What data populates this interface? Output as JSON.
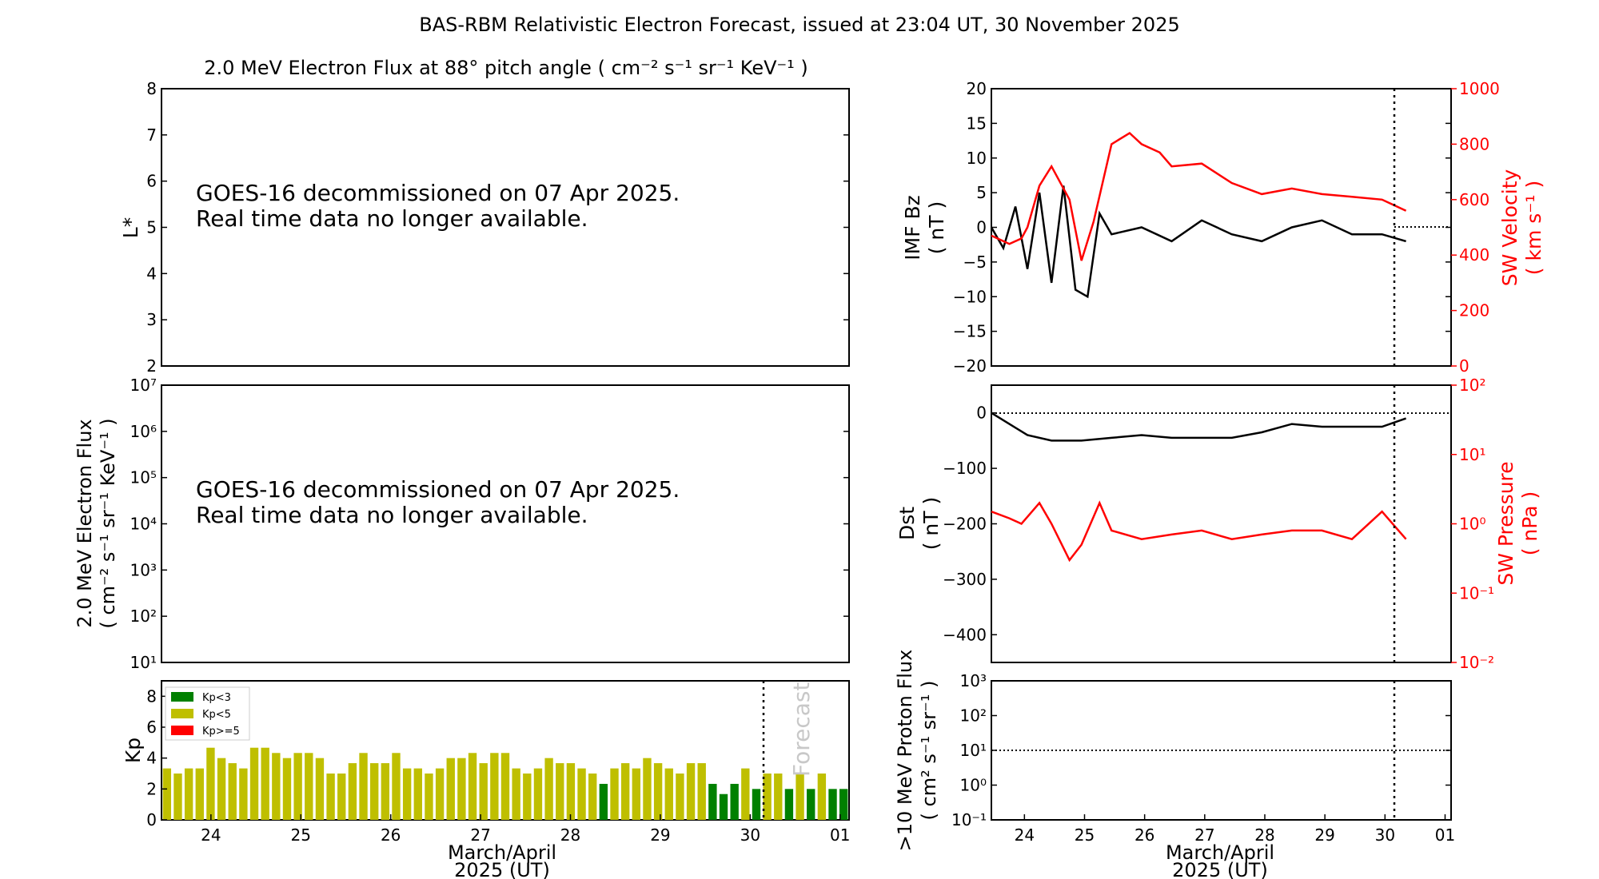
{
  "figure": {
    "title": "BAS-RBM Relativistic Electron Forecast, issued at 23:04 UT, 30 November 2025",
    "notice_line1": "GOES-16 decommissioned on 07 Apr 2025.",
    "notice_line2": "Real time data no longer available.",
    "xlabel_line1": "March/April",
    "xlabel_line2": "2025 (UT)",
    "day_ticks": [
      "24",
      "25",
      "26",
      "27",
      "28",
      "29",
      "30",
      "01"
    ],
    "forecast_label": "Forecast"
  },
  "chart_data": [
    {
      "id": "lstar",
      "type": "line",
      "title": "2.0 MeV Electron Flux at 88° pitch angle ( cm⁻² s⁻¹ sr⁻¹ KeV⁻¹ )",
      "ylabel": "L*",
      "ylim": [
        2,
        8
      ],
      "yticks": [
        "2",
        "3",
        "4",
        "5",
        "6",
        "7",
        "8"
      ],
      "series": []
    },
    {
      "id": "electron_flux",
      "type": "line",
      "ylabel_line1": "2.0 MeV Electron Flux",
      "ylabel_line2": "( cm⁻² s⁻¹ sr⁻¹ KeV⁻¹ )",
      "yscale": "log",
      "ylim": [
        10,
        10000000
      ],
      "yticks": [
        "10¹",
        "10²",
        "10³",
        "10⁴",
        "10⁵",
        "10⁶",
        "10⁷"
      ],
      "series": []
    },
    {
      "id": "kp",
      "type": "bar",
      "ylabel": "Kp",
      "ylim": [
        0,
        9
      ],
      "yticks": [
        "0",
        "2",
        "4",
        "6",
        "8"
      ],
      "legend": [
        "Kp<3",
        "Kp<5",
        "Kp>=5"
      ],
      "colors": {
        "low": "#008000",
        "mid": "#bfbf00",
        "high": "#ff0000"
      },
      "values": [
        3.33,
        3.0,
        3.33,
        3.33,
        4.67,
        4.0,
        3.67,
        3.33,
        4.67,
        4.67,
        4.33,
        4.0,
        4.33,
        4.33,
        4.0,
        3.0,
        3.0,
        3.67,
        4.33,
        3.67,
        3.67,
        4.33,
        3.33,
        3.33,
        3.0,
        3.33,
        4.0,
        4.0,
        4.33,
        3.67,
        4.33,
        4.33,
        3.33,
        3.0,
        3.33,
        4.0,
        3.67,
        3.67,
        3.33,
        3.0,
        2.33,
        3.33,
        3.67,
        3.33,
        4.0,
        3.67,
        3.33,
        3.0,
        3.67,
        3.67,
        2.33,
        1.67,
        2.33,
        3.33,
        2.0,
        3.0,
        3.0,
        2.0,
        3.0,
        2.0,
        3.0,
        2.0,
        2.0
      ],
      "forecast_index": 54,
      "xlabel": "March/April"
    },
    {
      "id": "imf_bz_sw_velocity",
      "type": "line",
      "ylabel_line1": "IMF Bz",
      "ylabel_line2": "( nT )",
      "ylim": [
        -20,
        20
      ],
      "yticks": [
        "−20",
        "−15",
        "−10",
        "−5",
        "0",
        "5",
        "10",
        "15",
        "20"
      ],
      "y2label_line1": "SW Velocity",
      "y2label_line2": "( km s⁻¹ )",
      "y2lim": [
        0,
        1000
      ],
      "y2ticks": [
        "0",
        "200",
        "400",
        "600",
        "800",
        "1000"
      ],
      "series": [
        {
          "axis": "left",
          "color": "#000000",
          "x": [
            0.0,
            0.2,
            0.4,
            0.6,
            0.8,
            1.0,
            1.2,
            1.4,
            1.6,
            1.8,
            2.0,
            2.5,
            3.0,
            3.5,
            4.0,
            4.5,
            5.0,
            5.5,
            6.0,
            6.5,
            6.9
          ],
          "y": [
            0,
            -3,
            3,
            -6,
            5,
            -8,
            6,
            -9,
            -10,
            2,
            -1,
            0,
            -2,
            1,
            -1,
            -2,
            0,
            1,
            -1,
            -1,
            -2
          ]
        },
        {
          "axis": "right",
          "color": "#ff0000",
          "x": [
            0.0,
            0.3,
            0.5,
            0.6,
            0.8,
            1.0,
            1.3,
            1.5,
            1.7,
            2.0,
            2.3,
            2.5,
            2.8,
            3.0,
            3.5,
            4.0,
            4.5,
            5.0,
            5.5,
            6.0,
            6.5,
            6.9
          ],
          "y": [
            470,
            440,
            460,
            500,
            650,
            720,
            600,
            380,
            520,
            800,
            840,
            800,
            770,
            720,
            730,
            660,
            620,
            640,
            620,
            610,
            600,
            560
          ]
        }
      ]
    },
    {
      "id": "dst_sw_pressure",
      "type": "line",
      "ylabel_line1": "Dst",
      "ylabel_line2": "( nT )",
      "ylim": [
        -450,
        50
      ],
      "yticks": [
        "−400",
        "−300",
        "−200",
        "−100",
        "0"
      ],
      "y2label_line1": "SW Pressure",
      "y2label_line2": "( nPa )",
      "y2scale": "log",
      "y2lim": [
        0.01,
        100
      ],
      "y2ticks": [
        "10⁻²",
        "10⁻¹",
        "10⁰",
        "10¹",
        "10²"
      ],
      "series": [
        {
          "axis": "left",
          "color": "#000000",
          "x": [
            0.0,
            0.3,
            0.6,
            1.0,
            1.5,
            2.0,
            2.5,
            3.0,
            3.5,
            4.0,
            4.5,
            5.0,
            5.5,
            6.0,
            6.5,
            6.9
          ],
          "y": [
            0,
            -20,
            -40,
            -50,
            -50,
            -45,
            -40,
            -45,
            -45,
            -45,
            -35,
            -20,
            -25,
            -25,
            -25,
            -10
          ]
        },
        {
          "axis": "right",
          "color": "#ff0000",
          "x": [
            0.0,
            0.3,
            0.5,
            0.8,
            1.0,
            1.3,
            1.5,
            1.8,
            2.0,
            2.5,
            3.0,
            3.5,
            4.0,
            4.5,
            5.0,
            5.5,
            6.0,
            6.5,
            6.9
          ],
          "y": [
            1.5,
            1.2,
            1.0,
            2.0,
            1.0,
            0.3,
            0.5,
            2.0,
            0.8,
            0.6,
            0.7,
            0.8,
            0.6,
            0.7,
            0.8,
            0.8,
            0.6,
            1.5,
            0.6
          ]
        }
      ]
    },
    {
      "id": "proton_flux",
      "type": "line",
      "ylabel_line1": ">10 MeV Proton Flux",
      "ylabel_line2": "( cm² s⁻¹ sr⁻¹ )",
      "yscale": "log",
      "ylim": [
        0.1,
        1000
      ],
      "yticks": [
        "10⁻¹",
        "10⁰",
        "10¹",
        "10²",
        "10³"
      ],
      "threshold": 10,
      "series": []
    }
  ]
}
